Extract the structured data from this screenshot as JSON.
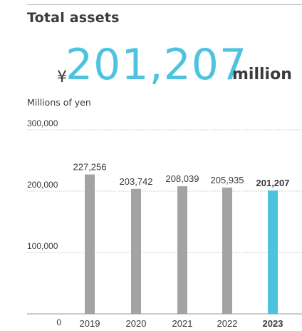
{
  "title": "Total assets",
  "headline": {
    "currency": "¥",
    "value": "201,207",
    "unit": "million"
  },
  "units_label": "Millions of yen",
  "colors": {
    "accent": "#4ec3df",
    "bar": "#a3a3a6",
    "text": "#3a3a3a"
  },
  "chart_data": {
    "type": "bar",
    "categories": [
      "2019",
      "2020",
      "2021",
      "2022",
      "2023"
    ],
    "values": [
      227256,
      203742,
      208039,
      205935,
      201207
    ],
    "value_labels": [
      "227,256",
      "203,742",
      "208,039",
      "205,935",
      "201,207"
    ],
    "highlight_index": 4,
    "yticks": [
      0,
      100000,
      200000,
      300000
    ],
    "ytick_labels": [
      "0",
      "100,000",
      "200,000",
      "300,000"
    ],
    "ylim": [
      0,
      300000
    ],
    "ylabel": "Millions of yen",
    "grid": true
  }
}
